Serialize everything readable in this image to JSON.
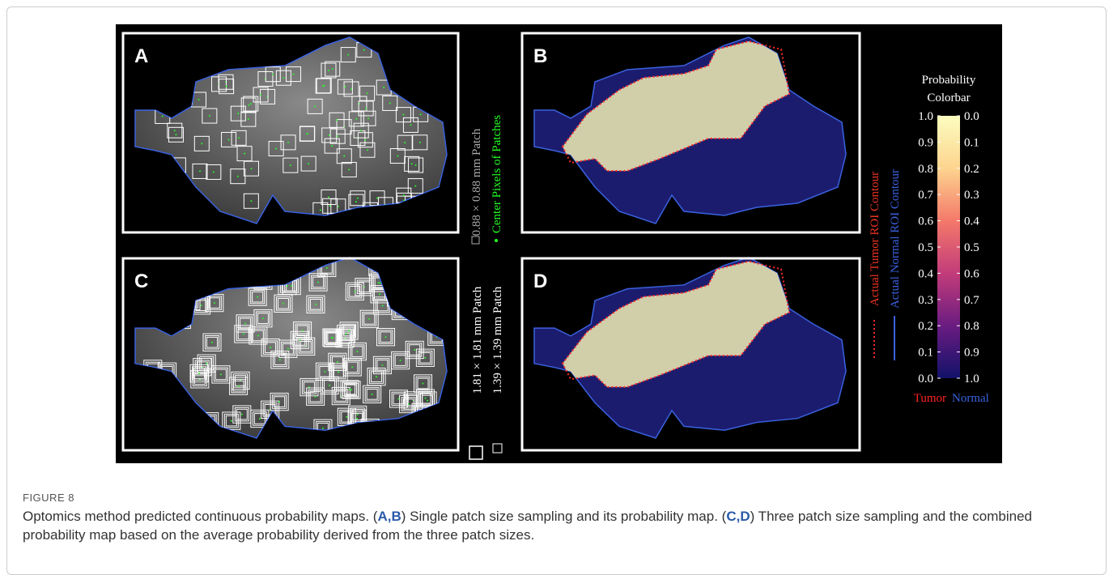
{
  "panels": [
    {
      "label": "A"
    },
    {
      "label": "B"
    },
    {
      "label": "C"
    },
    {
      "label": "D"
    }
  ],
  "legend": {
    "small_patch": "0.88 × 0.88 mm Patch",
    "center_pixels": "Center Pixels of Patches",
    "large_patch": "1.81 × 1.81 mm Patch",
    "medium_patch": "1.39 × 1.39 mm Patch",
    "tumor_contour": "Actual Tumor ROI Contour",
    "normal_contour": "Actual Normal ROI Contour"
  },
  "colorbar": {
    "title": [
      "Probability",
      "Colorbar"
    ],
    "left_ticks": [
      "1.0",
      "0.9",
      "0.8",
      "0.7",
      "0.6",
      "0.5",
      "0.4",
      "0.3",
      "0.2",
      "0.1",
      "0.0"
    ],
    "right_ticks": [
      "0.0",
      "0.1",
      "0.2",
      "0.3",
      "0.4",
      "0.5",
      "0.6",
      "0.7",
      "0.8",
      "0.9",
      "1.0"
    ],
    "left_label": "Tumor",
    "right_label": "Normal"
  },
  "caption": {
    "figure_label": "FIGURE 8",
    "segments": [
      "Optomics method predicted continuous probability maps. (",
      "A,B",
      ") Single patch size sampling and its probability map. (",
      "C,D",
      ") Three patch size sampling and the combined probability map based on the average probability derived from the three patch sizes."
    ]
  }
}
